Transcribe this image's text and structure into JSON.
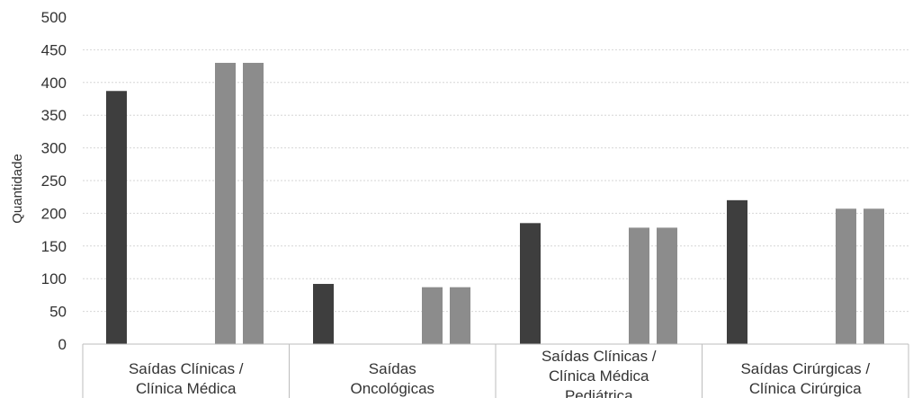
{
  "chart_data": {
    "type": "bar",
    "ylabel": "Quantidade",
    "xlabel": "",
    "ylim": [
      0,
      500
    ],
    "yticks": [
      "0",
      "50",
      "100",
      "150",
      "200",
      "250",
      "300",
      "350",
      "400",
      "450",
      "500"
    ],
    "grid": true,
    "categories": [
      [
        "Saídas Clínicas /",
        "Clínica Médica"
      ],
      [
        "Saídas",
        "Oncológicas"
      ],
      [
        "Saídas Clínicas /",
        "Clínica Médica",
        "Pediátrica"
      ],
      [
        "Saídas Cirúrgicas /",
        "Clínica Cirúrgica"
      ]
    ],
    "series": [
      {
        "values": [
          387,
          92,
          185,
          220
        ],
        "color": "#3e3e3e"
      },
      {
        "values": [
          430,
          87,
          178,
          207
        ],
        "color": "#8c8c8c"
      },
      {
        "values": [
          430,
          87,
          178,
          207
        ],
        "color": "#8c8c8c"
      }
    ]
  }
}
